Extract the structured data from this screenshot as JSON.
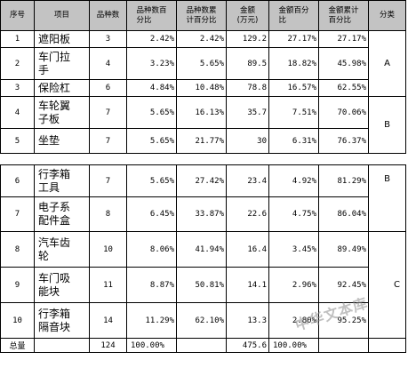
{
  "headers": {
    "seq": "序号",
    "item": "项目",
    "count": "品种数",
    "count_pct": "品种数百\n分比",
    "count_cum": "品种数累\n计百分比",
    "amount": "金额\n(万元)",
    "amount_pct": "金额百分\n比",
    "amount_cum": "金额累计\n百分比",
    "class": "分类"
  },
  "rows": [
    {
      "seq": "1",
      "name": "遮阳板",
      "count": "3",
      "count_pct": "2.42%",
      "count_cum": "2.42%",
      "amount": "129.2",
      "amount_pct": "27.17%",
      "amount_cum": "27.17%"
    },
    {
      "seq": "2",
      "name": "车门拉\n手",
      "count": "4",
      "count_pct": "3.23%",
      "count_cum": "5.65%",
      "amount": "89.5",
      "amount_pct": "18.82%",
      "amount_cum": "45.98%"
    },
    {
      "seq": "3",
      "name": "保险杠",
      "count": "6",
      "count_pct": "4.84%",
      "count_cum": "10.48%",
      "amount": "78.8",
      "amount_pct": "16.57%",
      "amount_cum": "62.55%"
    },
    {
      "seq": "4",
      "name": "车轮翼\n子板",
      "count": "7",
      "count_pct": "5.65%",
      "count_cum": "16.13%",
      "amount": "35.7",
      "amount_pct": "7.51%",
      "amount_cum": "70.06%"
    },
    {
      "seq": "5",
      "name": "坐垫",
      "count": "7",
      "count_pct": "5.65%",
      "count_cum": "21.77%",
      "amount": "30",
      "amount_pct": "6.31%",
      "amount_cum": "76.37%"
    },
    {
      "seq": "6",
      "name": "行李箱\n工具",
      "count": "7",
      "count_pct": "5.65%",
      "count_cum": "27.42%",
      "amount": "23.4",
      "amount_pct": "4.92%",
      "amount_cum": "81.29%"
    },
    {
      "seq": "7",
      "name": "电子系\n配件盒",
      "count": "8",
      "count_pct": "6.45%",
      "count_cum": "33.87%",
      "amount": "22.6",
      "amount_pct": "4.75%",
      "amount_cum": "86.04%"
    },
    {
      "seq": "8",
      "name": "汽车齿\n轮",
      "count": "10",
      "count_pct": "8.06%",
      "count_cum": "41.94%",
      "amount": "16.4",
      "amount_pct": "3.45%",
      "amount_cum": "89.49%"
    },
    {
      "seq": "9",
      "name": "车门吸\n能块",
      "count": "11",
      "count_pct": "8.87%",
      "count_cum": "50.81%",
      "amount": "14.1",
      "amount_pct": "2.96%",
      "amount_cum": "92.45%"
    },
    {
      "seq": "10",
      "name": "行李箱\n隔音块",
      "count": "14",
      "count_pct": "11.29%",
      "count_cum": "62.10%",
      "amount": "13.3",
      "amount_pct": "2.80%",
      "amount_cum": "95.25%"
    }
  ],
  "total": {
    "label": "总量",
    "count": "124",
    "count_pct": "100.00%",
    "amount": "475.6",
    "amount_pct": "100.00%"
  },
  "classes": {
    "a": "A",
    "b": "B",
    "b2": "B",
    "c": "C"
  },
  "watermark": "中华文本库"
}
